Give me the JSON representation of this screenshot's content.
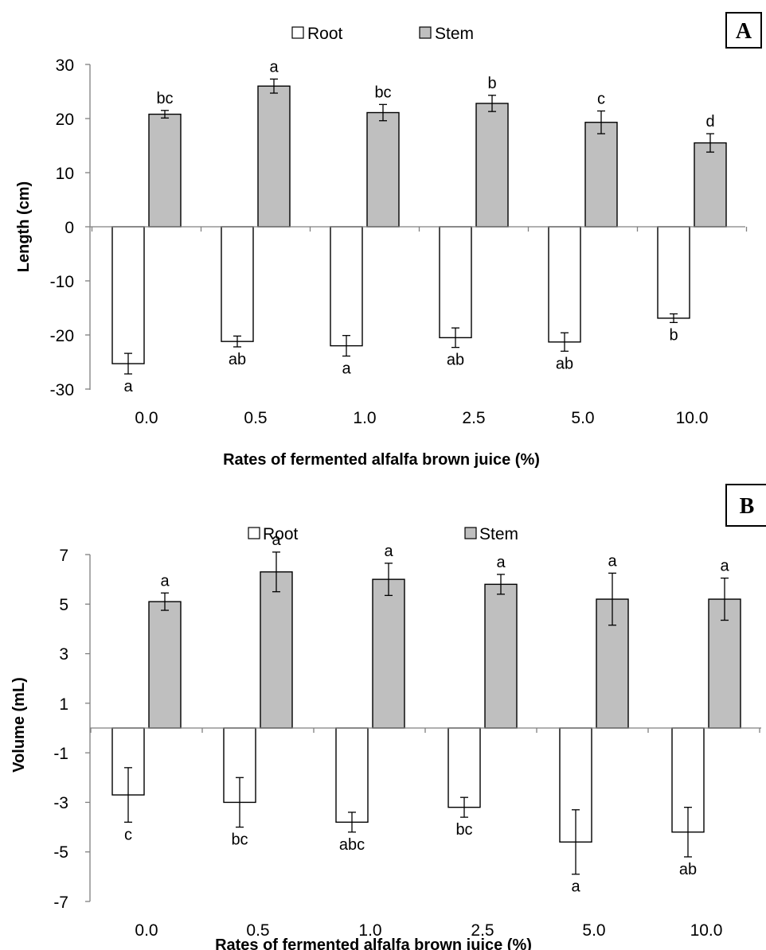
{
  "chart_data": [
    {
      "type": "bar",
      "panel_label": "A",
      "title": "",
      "xlabel": "Rates of fermented alfalfa brown juice (%)",
      "ylabel": "Length (cm)",
      "ylim": [
        -30,
        30
      ],
      "yticks": [
        "30",
        "20",
        "10",
        "0",
        "-10",
        "-20",
        "-30"
      ],
      "categories": [
        "0.0",
        "0.5",
        "1.0",
        "2.5",
        "5.0",
        "10.0"
      ],
      "legend": {
        "placement": "top",
        "items": [
          "Root",
          "Stem"
        ]
      },
      "grid": false,
      "series": [
        {
          "name": "Root",
          "color": "#ffffff",
          "values": [
            -25.3,
            -21.2,
            -22.0,
            -20.5,
            -21.3,
            -16.9
          ],
          "errors": [
            1.9,
            1.0,
            1.9,
            1.8,
            1.7,
            0.8
          ],
          "labels": [
            "a",
            "ab",
            "a",
            "ab",
            "ab",
            "b"
          ]
        },
        {
          "name": "Stem",
          "color": "#bfbfbf",
          "values": [
            20.8,
            26.0,
            21.1,
            22.8,
            19.3,
            15.5
          ],
          "errors": [
            0.7,
            1.3,
            1.5,
            1.5,
            2.1,
            1.7
          ],
          "labels": [
            "bc",
            "a",
            "bc",
            "b",
            "c",
            "d"
          ]
        }
      ]
    },
    {
      "type": "bar",
      "panel_label": "B",
      "title": "",
      "xlabel": "Rates of fermented alfalfa brown juice (%)",
      "ylabel": "Volume (mL)",
      "ylim": [
        -7,
        7
      ],
      "yticks": [
        "7",
        "5",
        "3",
        "1",
        "-1",
        "-3",
        "-5",
        "-7"
      ],
      "categories": [
        "0.0",
        "0.5",
        "1.0",
        "2.5",
        "5.0",
        "10.0"
      ],
      "legend": {
        "placement": "top",
        "items": [
          "Root",
          "Stem"
        ]
      },
      "grid": false,
      "series": [
        {
          "name": "Root",
          "color": "#ffffff",
          "values": [
            -2.7,
            -3.0,
            -3.8,
            -3.2,
            -4.6,
            -4.2
          ],
          "errors": [
            1.1,
            1.0,
            0.4,
            0.4,
            1.3,
            1.0
          ],
          "labels": [
            "c",
            "bc",
            "abc",
            "bc",
            "a",
            "ab"
          ]
        },
        {
          "name": "Stem",
          "color": "#bfbfbf",
          "values": [
            5.1,
            6.3,
            6.0,
            5.8,
            5.2,
            5.2
          ],
          "errors": [
            0.35,
            0.8,
            0.65,
            0.4,
            1.05,
            0.85
          ],
          "labels": [
            "a",
            "a",
            "a",
            "a",
            "a",
            "a"
          ]
        }
      ]
    }
  ]
}
